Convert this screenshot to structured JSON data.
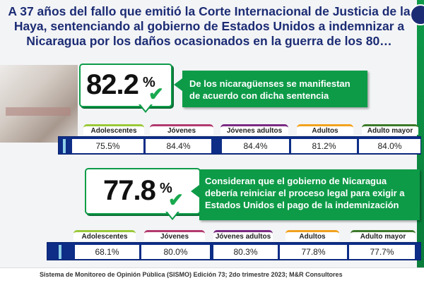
{
  "headline": "A 37 años del fallo que emitió la Corte Internacional de Justicia de la Haya, sentenciando al gobierno de Estados Unidos a indemnizar a Nicaragua por los daños ocasionados en la guerra de los 80…",
  "percent_sign": "%",
  "chart_data": [
    {
      "type": "table",
      "headline_value": "82.2",
      "description": "De los nicaragüenses se manifiestan de acuerdo con dicha sentencia",
      "categories": [
        "Adolescentes",
        "Jóvenes",
        "Jóvenes adultos",
        "Adultos",
        "Adulto mayor"
      ],
      "values": [
        "75.5%",
        "84.4%",
        "84.4%",
        "81.2%",
        "84.0%"
      ]
    },
    {
      "type": "table",
      "headline_value": "77.8",
      "description": "Consideran que el gobierno de Nicaragua debería reiniciar el proceso legal para exigir a Estados Unidos el pago de la indemnización",
      "categories": [
        "Adolescentes",
        "Jóvenes",
        "Jóvenes adultos",
        "Adultos",
        "Adulto mayor"
      ],
      "values": [
        "68.1%",
        "80.0%",
        "80.3%",
        "77.8%",
        "77.7%"
      ]
    }
  ],
  "tag_colors": [
    "#9ac93a",
    "#b23a6e",
    "#7a2a82",
    "#f2a21e",
    "#3c7a2a"
  ],
  "source": "Sistema de Monitoreo de Opinión Pública (SISMO) Edición 73; 2do trimestre 2023; M&R Consultores"
}
